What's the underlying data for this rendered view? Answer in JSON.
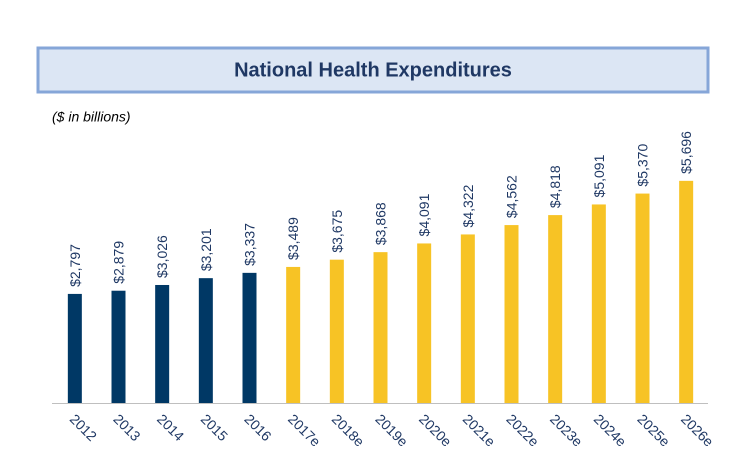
{
  "chart_data": {
    "type": "bar",
    "title": "National Health Expenditures",
    "subtitle": "($ in billions)",
    "categories": [
      "2012",
      "2013",
      "2014",
      "2015",
      "2016",
      "2017e",
      "2018e",
      "2019e",
      "2020e",
      "2021e",
      "2022e",
      "2023e",
      "2024e",
      "2025e",
      "2026e"
    ],
    "values": [
      2797,
      2879,
      3026,
      3201,
      3337,
      3489,
      3675,
      3868,
      4091,
      4322,
      4562,
      4818,
      5091,
      5370,
      5696
    ],
    "value_labels": [
      "$2,797",
      "$2,879",
      "$3,026",
      "$3,201",
      "$3,337",
      "$3,489",
      "$3,675",
      "$3,868",
      "$4,091",
      "$4,322",
      "$4,562",
      "$4,818",
      "$5,091",
      "$5,370",
      "$5,696"
    ],
    "colors": [
      "#003865",
      "#003865",
      "#003865",
      "#003865",
      "#003865",
      "#f7c325",
      "#f7c325",
      "#f7c325",
      "#f7c325",
      "#f7c325",
      "#f7c325",
      "#f7c325",
      "#f7c325",
      "#f7c325",
      "#f7c325"
    ],
    "ylim": [
      0,
      6000
    ]
  }
}
